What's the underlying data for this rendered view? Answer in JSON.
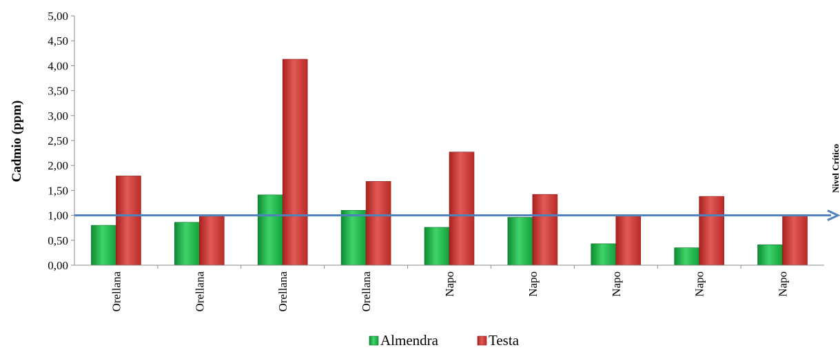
{
  "chart_data": {
    "type": "bar",
    "categories": [
      "Orellana",
      "Orellana",
      "Orellana",
      "Orellana",
      "Napo",
      "Napo",
      "Napo",
      "Napo",
      "Napo"
    ],
    "series": [
      {
        "name": "Almendra",
        "values": [
          0.8,
          0.86,
          1.41,
          1.1,
          0.76,
          0.96,
          0.43,
          0.35,
          0.41
        ],
        "color": "#1fb84a"
      },
      {
        "name": "Testa",
        "values": [
          1.79,
          1.0,
          4.13,
          1.68,
          2.27,
          1.42,
          1.0,
          1.38,
          1.0
        ],
        "color": "#d03a36"
      }
    ],
    "ylabel": "Cadmio (ppm)",
    "ylim": [
      0,
      5
    ],
    "yticks": [
      "0,00",
      "0,50",
      "1,00",
      "1,50",
      "2,00",
      "2,50",
      "3,00",
      "3,50",
      "4,00",
      "4,50",
      "5,00"
    ],
    "critical_level": {
      "value": 1.0,
      "label": "Nivel Crítico",
      "color": "#4f81bd"
    },
    "legend_position": "bottom",
    "grid": false
  }
}
